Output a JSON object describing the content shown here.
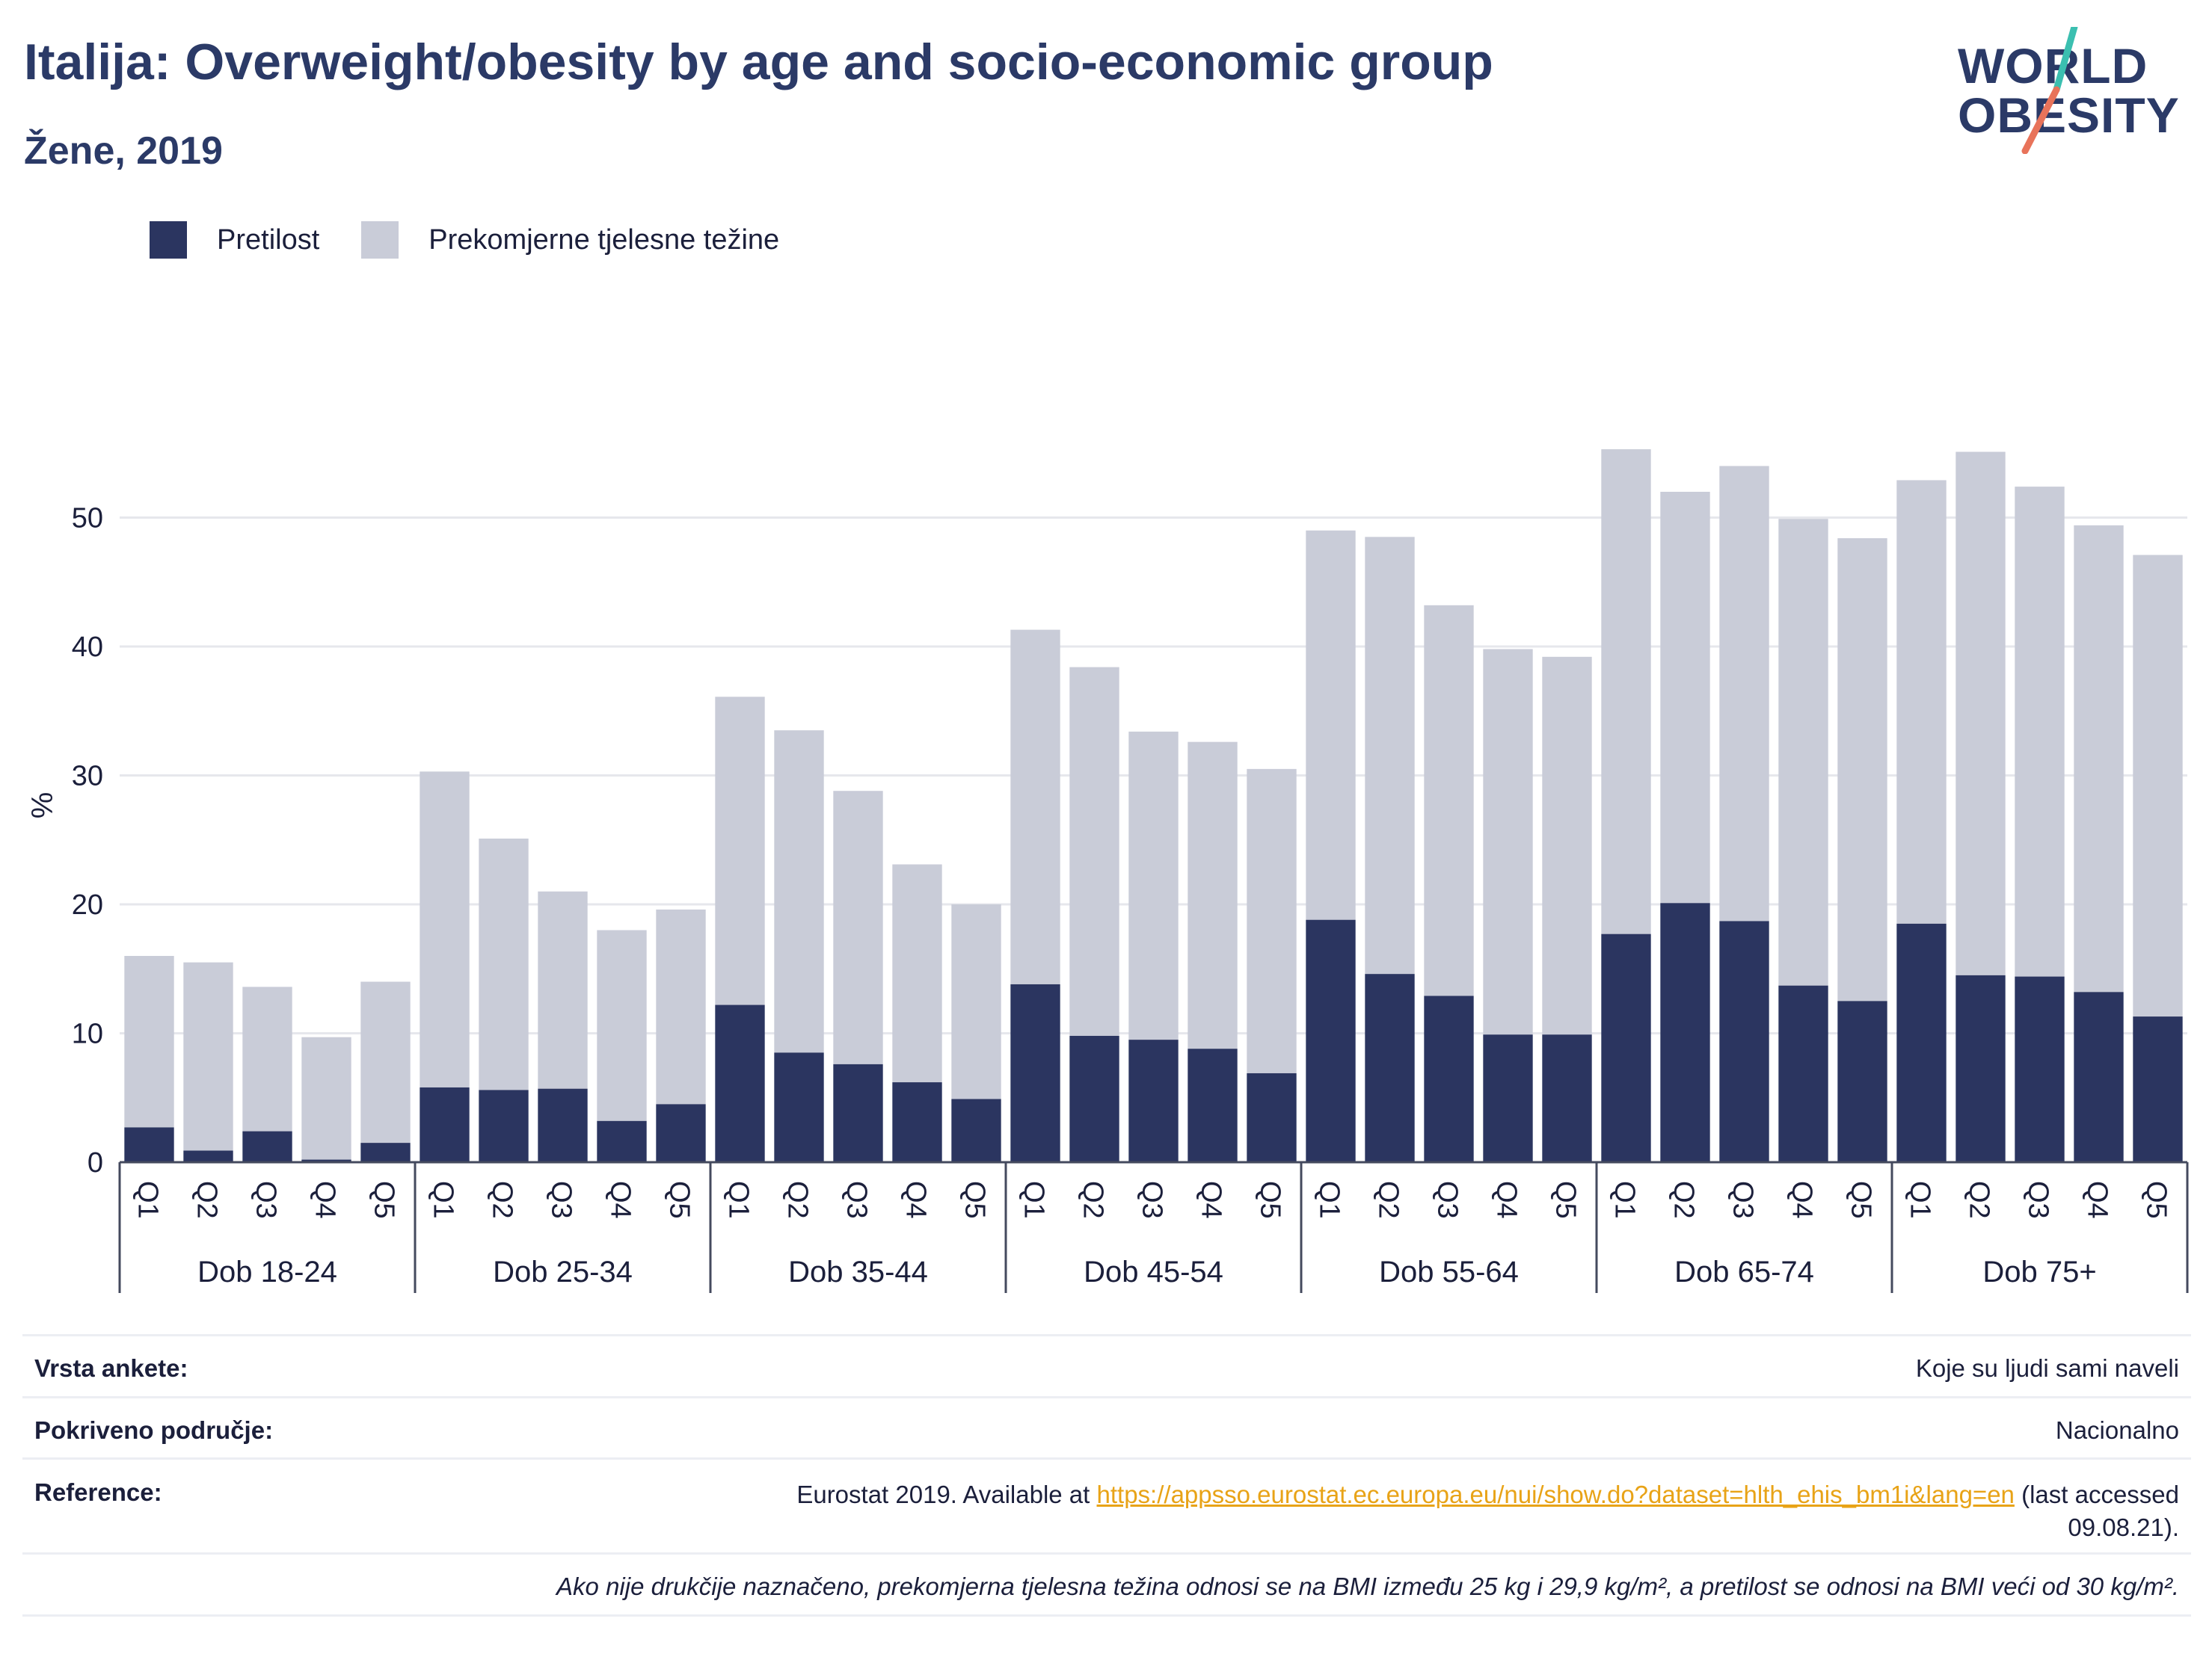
{
  "header": {
    "title": "Italija: Overweight/obesity by age and socio-economic group",
    "subtitle": "Žene, 2019"
  },
  "logo": {
    "line1": "WORLD",
    "line2": "OBESITY",
    "colors": {
      "text": "#2b3a67",
      "slash_top": "#3bbfb0",
      "slash_bottom": "#e8735a"
    }
  },
  "legend": [
    {
      "label": "Pretilost",
      "color": "#2b3560"
    },
    {
      "label": "Prekomjerne tjelesne težine",
      "color": "#c9ccd8"
    }
  ],
  "chart_data": {
    "type": "bar",
    "stacked": true,
    "ylabel": "%",
    "ylim": [
      0,
      60
    ],
    "yticks": [
      0,
      10,
      20,
      30,
      40,
      50
    ],
    "grid": true,
    "legend_position": "top-left",
    "groups": [
      "Dob 18-24",
      "Dob 25-34",
      "Dob 35-44",
      "Dob 45-54",
      "Dob 55-64",
      "Dob 65-74",
      "Dob 75+"
    ],
    "categories": [
      "Q1",
      "Q2",
      "Q3",
      "Q4",
      "Q5"
    ],
    "series": [
      {
        "name": "Pretilost",
        "color": "#2b3560",
        "values": [
          [
            2.7,
            0.9,
            2.4,
            0.2,
            1.5
          ],
          [
            5.8,
            5.6,
            5.7,
            3.2,
            4.5
          ],
          [
            12.2,
            8.5,
            7.6,
            6.2,
            4.9
          ],
          [
            13.8,
            9.8,
            9.5,
            8.8,
            6.9
          ],
          [
            18.8,
            14.6,
            12.9,
            9.9,
            9.9
          ],
          [
            17.7,
            20.1,
            18.7,
            13.7,
            12.5
          ],
          [
            18.5,
            14.5,
            14.4,
            13.2,
            11.3
          ]
        ]
      },
      {
        "name": "Prekomjerne tjelesne težine",
        "color": "#c9ccd8",
        "values": [
          [
            13.3,
            14.6,
            11.2,
            9.5,
            12.5
          ],
          [
            24.5,
            19.5,
            15.3,
            14.8,
            15.1
          ],
          [
            23.9,
            25.0,
            21.2,
            16.9,
            15.1
          ],
          [
            27.5,
            28.6,
            23.9,
            23.8,
            23.6
          ],
          [
            30.2,
            33.9,
            30.3,
            29.9,
            29.3
          ],
          [
            37.6,
            31.9,
            35.3,
            36.2,
            35.9
          ],
          [
            34.4,
            40.6,
            38.0,
            36.2,
            35.8
          ]
        ]
      }
    ]
  },
  "info": {
    "survey_label": "Vrsta ankete:",
    "survey_value": "Koje su ljudi sami naveli",
    "coverage_label": "Pokriveno područje:",
    "coverage_value": "Nacionalno",
    "reference_label": "Reference:",
    "reference_prefix": "Eurostat 2019. Available at ",
    "reference_link": "https://appsso.eurostat.ec.europa.eu/nui/show.do?dataset=hlth_ehis_bm1i&lang=en",
    "reference_suffix": " (last accessed",
    "reference_date": "09.08.21).",
    "note": "Ako nije drukčije naznačeno, prekomjerna tjelesna težina odnosi se na BMI između 25 kg i 29,9 kg/m², a pretilost se odnosi na BMI veći od 30 kg/m²."
  }
}
